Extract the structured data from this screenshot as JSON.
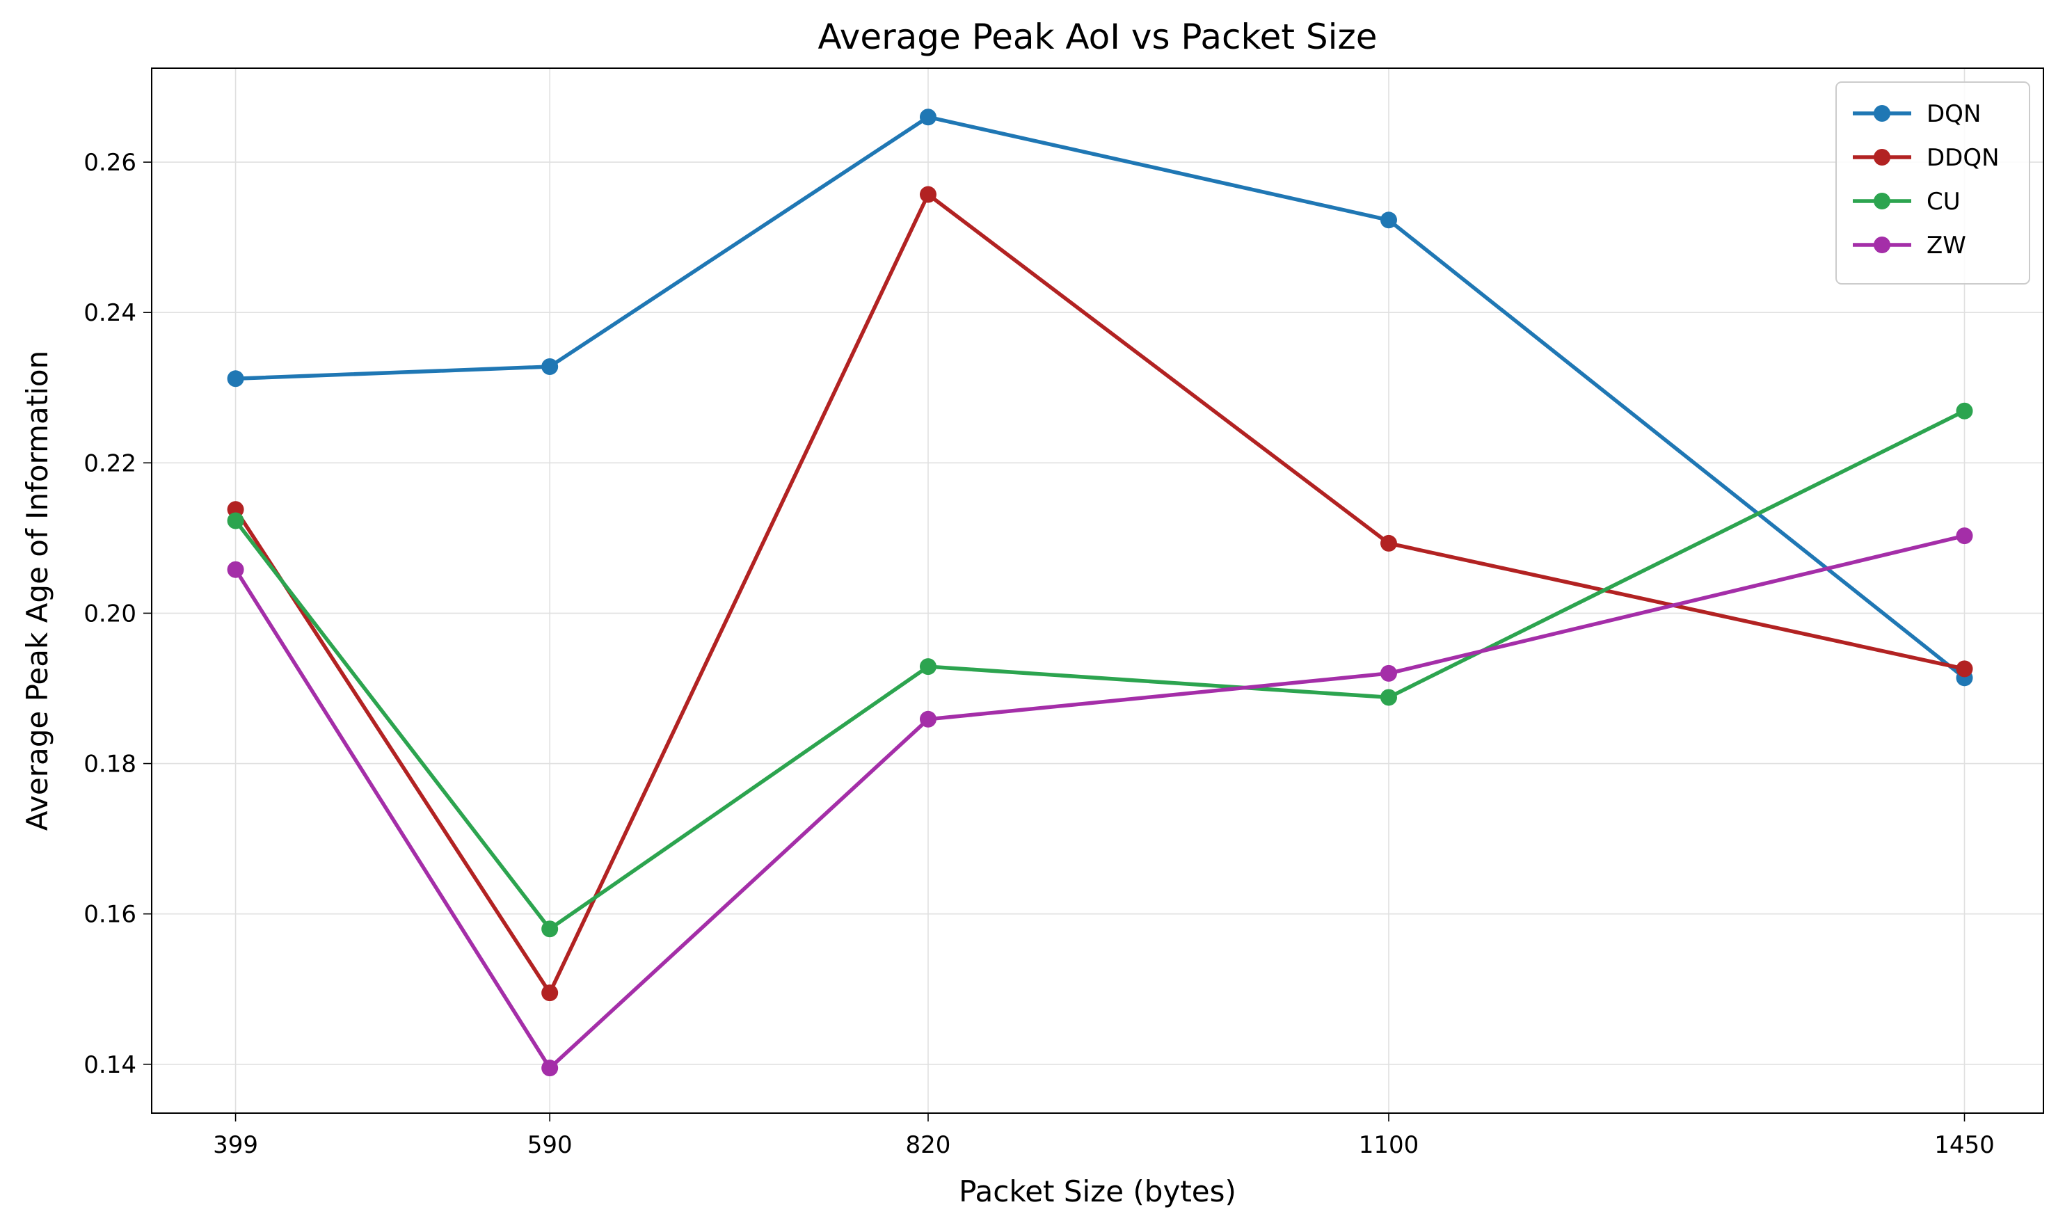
{
  "chart_data": {
    "type": "line",
    "title": "Average Peak AoI vs Packet Size",
    "xlabel": "Packet Size (bytes)",
    "ylabel": "Average Peak Age of Information",
    "x": [
      399,
      590,
      820,
      1100,
      1450
    ],
    "x_tick_labels": [
      "399",
      "590",
      "820",
      "1100",
      "1450"
    ],
    "xlim": [
      348,
      1498
    ],
    "ylim": [
      0.1335,
      0.2725
    ],
    "y_ticks": [
      0.14,
      0.16,
      0.18,
      0.2,
      0.22,
      0.24,
      0.26
    ],
    "y_tick_labels": [
      "0.14",
      "0.16",
      "0.18",
      "0.20",
      "0.22",
      "0.24",
      "0.26"
    ],
    "grid": true,
    "legend_position": "top-right",
    "series": [
      {
        "name": "DQN",
        "color": "#1f77b4",
        "values": [
          0.2312,
          0.2328,
          0.266,
          0.2523,
          0.1914
        ]
      },
      {
        "name": "DDQN",
        "color": "#b22222",
        "values": [
          0.2138,
          0.1495,
          0.2557,
          0.2093,
          0.1926
        ]
      },
      {
        "name": "CU",
        "color": "#2ca44f",
        "values": [
          0.2123,
          0.158,
          0.1929,
          0.1888,
          0.2269
        ]
      },
      {
        "name": "ZW",
        "color": "#a42ea8",
        "values": [
          0.2058,
          0.1395,
          0.1859,
          0.192,
          0.2103
        ]
      }
    ]
  }
}
